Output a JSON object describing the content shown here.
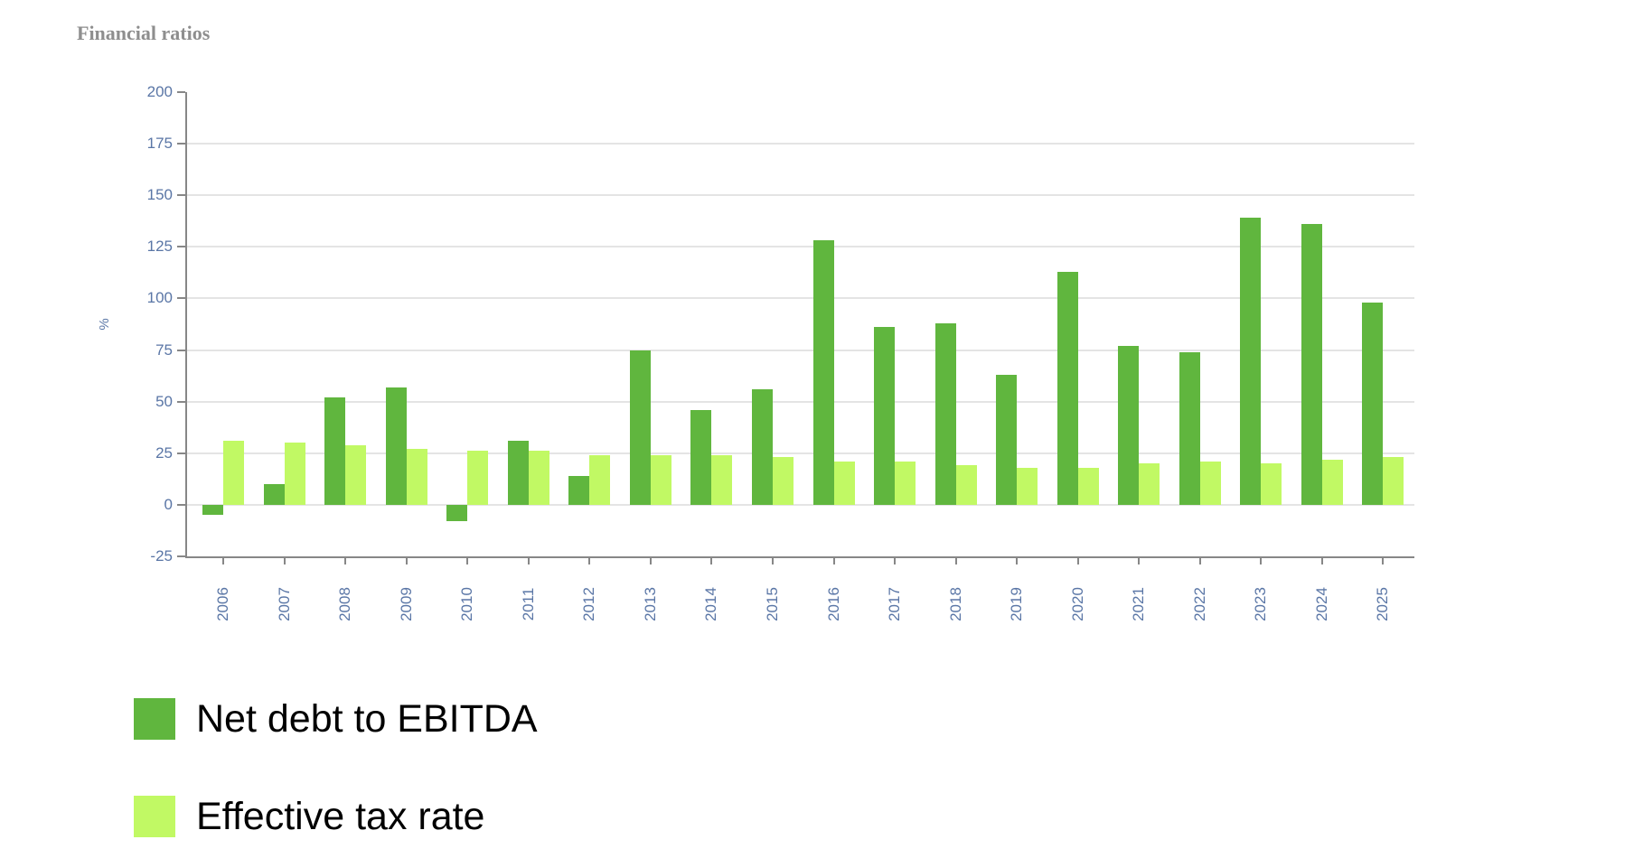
{
  "page_title": "Financial ratios",
  "colors": {
    "series_dark_green": "#60b63e",
    "series_light_green": "#c1f964",
    "axis": "#878787",
    "gridline": "#e4e4e4",
    "tick_label": "#5a76a6",
    "chart_title": "#8e8e8e",
    "legend_text": "#000000",
    "background": "#ffffff"
  },
  "chart_data": {
    "type": "bar",
    "title": "Financial ratios",
    "xlabel": "",
    "ylabel": "%",
    "ylim": [
      -25,
      200
    ],
    "yticks": [
      200,
      175,
      150,
      125,
      100,
      75,
      50,
      25,
      0,
      -25
    ],
    "grid": true,
    "legend_position": "bottom-left",
    "categories": [
      "2006",
      "2007",
      "2008",
      "2009",
      "2010",
      "2011",
      "2012",
      "2013",
      "2014",
      "2015",
      "2016",
      "2017",
      "2018",
      "2019",
      "2020",
      "2021",
      "2022",
      "2023",
      "2024",
      "2025"
    ],
    "series": [
      {
        "name": "Net debt to EBITDA",
        "color": "#60b63e",
        "values": [
          -5,
          10,
          52,
          57,
          -8,
          31,
          14,
          75,
          46,
          56,
          128,
          86,
          88,
          63,
          113,
          77,
          74,
          139,
          136,
          98
        ]
      },
      {
        "name": "Effective tax rate",
        "color": "#c1f964",
        "values": [
          31,
          30,
          29,
          27,
          26,
          26,
          24,
          24,
          24,
          23,
          21,
          21,
          19,
          18,
          18,
          20,
          21,
          20,
          22,
          23
        ]
      }
    ]
  }
}
